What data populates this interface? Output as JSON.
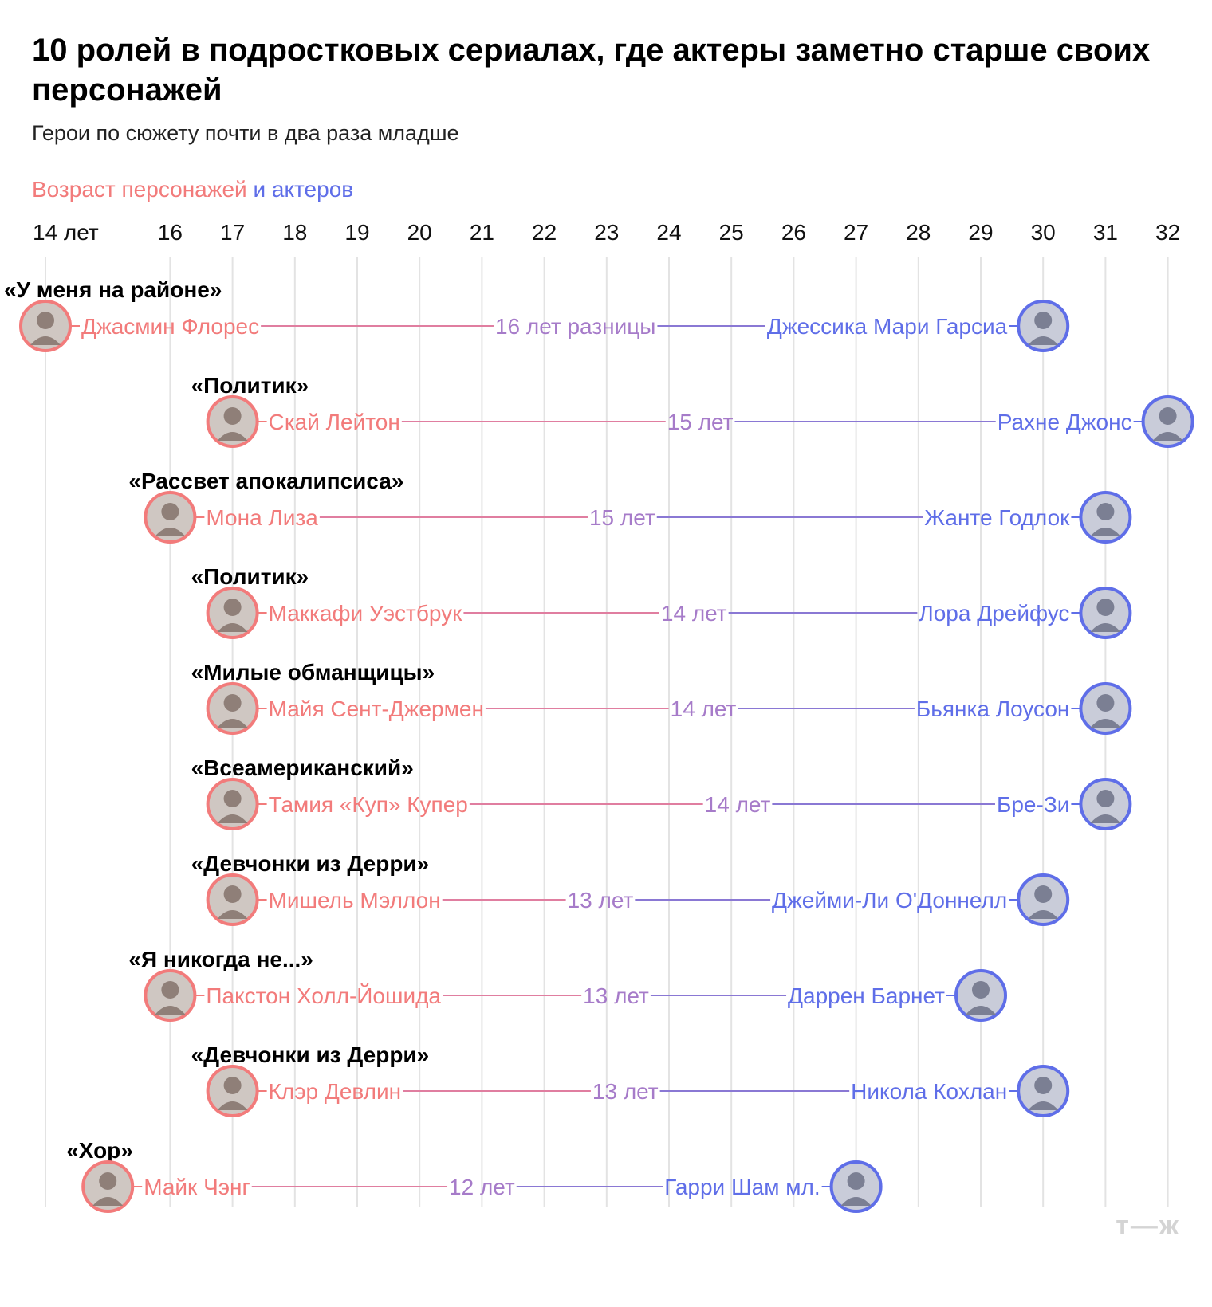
{
  "title": "10 ролей в подростковых сериалах, где актеры заметно старше своих персонажей",
  "subtitle": "Герои по сюжету почти в два раза младше",
  "legend": {
    "characters": "Возраст персонажей",
    "actors": "и актеров"
  },
  "colors": {
    "character": "#f27b7b",
    "actor": "#5f6ee8",
    "gap": "#a67bc9",
    "grid": "#e3e3e3"
  },
  "logo": "т—ж",
  "chart_data": {
    "type": "dumbbell",
    "x_ticks": [
      "14 лет",
      "16",
      "17",
      "18",
      "19",
      "20",
      "21",
      "22",
      "23",
      "24",
      "25",
      "26",
      "27",
      "28",
      "29",
      "30",
      "31",
      "32"
    ],
    "xlim": [
      13.6,
      32.4
    ],
    "rows": [
      {
        "show": "«У меня на районе»",
        "character": "Джасмин Флорес",
        "character_age": 14,
        "actor": "Джессика Мари Гарсиа",
        "actor_age": 30,
        "gap_label": "16 лет разницы",
        "gap_x": 22.5
      },
      {
        "show": "«Политик»",
        "character": "Скай Лейтон",
        "character_age": 17,
        "actor": "Рахне Джонс",
        "actor_age": 32,
        "gap_label": "15 лет",
        "gap_x": 24.5
      },
      {
        "show": "«Рассвет апокалипсиса»",
        "character": "Мона Лиза",
        "character_age": 16,
        "actor": "Жанте Годлок",
        "actor_age": 31,
        "gap_label": "15 лет",
        "gap_x": 23.25
      },
      {
        "show": "«Политик»",
        "character": "Маккафи Уэстбрук",
        "character_age": 17,
        "actor": "Лора Дрейфус",
        "actor_age": 31,
        "gap_label": "14 лет",
        "gap_x": 24.4
      },
      {
        "show": "«Милые обманщицы»",
        "character": "Майя Сент-Джермен",
        "character_age": 17,
        "actor": "Бьянка Лоусон",
        "actor_age": 31,
        "gap_label": "14 лет",
        "gap_x": 24.55
      },
      {
        "show": "«Всеамериканский»",
        "character": "Тамия «Куп» Купер",
        "character_age": 17,
        "actor": "Бре-Зи",
        "actor_age": 31,
        "gap_label": "14 лет",
        "gap_x": 25.1
      },
      {
        "show": "«Девчонки из Дерри»",
        "character": "Мишель Мэллон",
        "character_age": 17,
        "actor": "Джейми-Ли О'Доннелл",
        "actor_age": 30,
        "gap_label": "13 лет",
        "gap_x": 22.9
      },
      {
        "show": "«Я никогда не...»",
        "character": "Пакстон Холл-Йошида",
        "character_age": 16,
        "actor": "Даррен Барнет",
        "actor_age": 29,
        "gap_label": "13 лет",
        "gap_x": 23.15
      },
      {
        "show": "«Девчонки из Дерри»",
        "character": "Клэр Девлин",
        "character_age": 17,
        "actor": "Никола Кохлан",
        "actor_age": 30,
        "gap_label": "13 лет",
        "gap_x": 23.3
      },
      {
        "show": "«Хор»",
        "character": "Майк Чэнг",
        "character_age": 15,
        "actor": "Гарри Шам мл.",
        "actor_age": 27,
        "gap_label": "12 лет",
        "gap_x": 21.0
      }
    ]
  }
}
